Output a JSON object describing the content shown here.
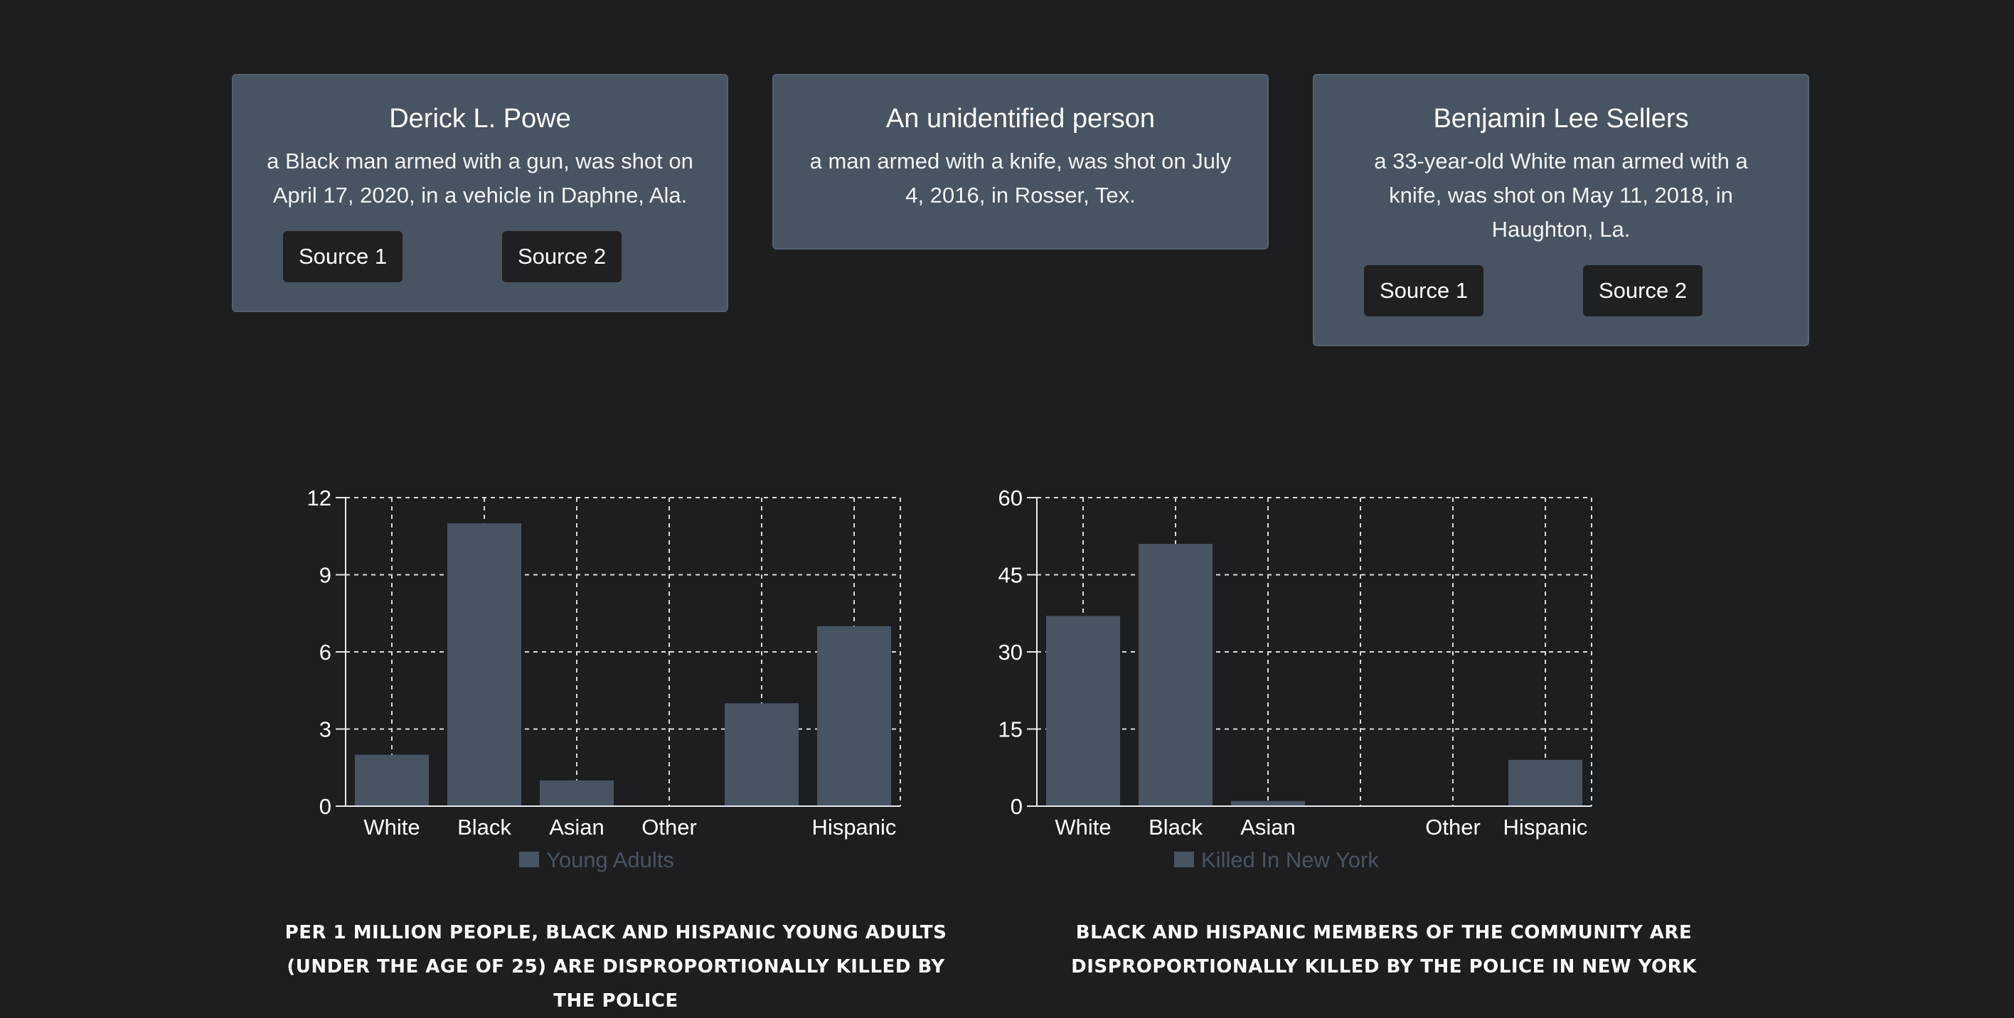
{
  "cards": [
    {
      "name": "Derick L. Powe",
      "description": "a Black man armed with a gun, was shot on April 17, 2020, in a vehicle in Daphne, Ala.",
      "sources": [
        "Source 1",
        "Source 2"
      ]
    },
    {
      "name": "An unidentified person",
      "description": "a man armed with a knife, was shot on July 4, 2016, in Rosser, Tex.",
      "sources": []
    },
    {
      "name": "Benjamin Lee Sellers",
      "description": "a 33-year-old White man armed with a knife, was shot on May 11, 2018, in Haughton, La.",
      "sources": [
        "Source 1",
        "Source 2"
      ]
    }
  ],
  "chart_data": [
    {
      "type": "bar",
      "categories": [
        "White",
        "Black",
        "Asian",
        "Other",
        "",
        "Hispanic"
      ],
      "series": [
        {
          "name": "Young Adults",
          "values": [
            2,
            11,
            1,
            0,
            4,
            7
          ]
        }
      ],
      "yticks": [
        0,
        3,
        6,
        9,
        12
      ],
      "ylim": [
        0,
        12
      ],
      "grid": true,
      "legend_position": "bottom",
      "caption": "Per 1 million people, Black and Hispanic young adults (under the age of 25) are disproportionally killed by the police"
    },
    {
      "type": "bar",
      "categories": [
        "White",
        "Black",
        "Asian",
        "",
        "Other",
        "Hispanic"
      ],
      "series": [
        {
          "name": "Killed In New York",
          "values": [
            37,
            51,
            1,
            0,
            0,
            9
          ]
        }
      ],
      "yticks": [
        0,
        15,
        30,
        45,
        60
      ],
      "ylim": [
        0,
        60
      ],
      "grid": true,
      "legend_position": "bottom",
      "caption": "Black and Hispanic members of the community are disproportionally killed by the police in New York"
    }
  ],
  "colors": {
    "background": "#1d1e20",
    "card": "#485462",
    "bar": "#485462",
    "legend_text": "#485462",
    "button": "#1f2022"
  }
}
